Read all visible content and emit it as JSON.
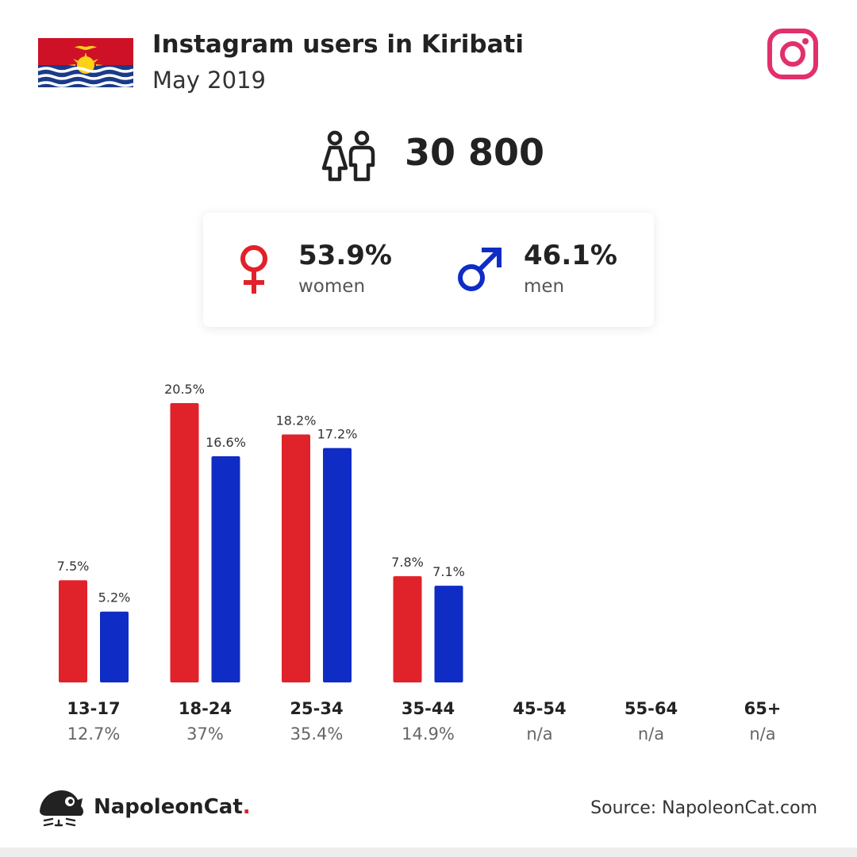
{
  "header": {
    "title": "Instagram users in Kiribati",
    "subtitle": "May 2019"
  },
  "summary": {
    "total": "30 800",
    "women_pct": "53.9%",
    "women_label": "women",
    "men_pct": "46.1%",
    "men_label": "men"
  },
  "footer": {
    "brand": "NapoleonCat",
    "brand_dot": ".",
    "source": "Source: NapoleonCat.com"
  },
  "colors": {
    "women": "#e0222a",
    "men": "#0f2cc4",
    "instagram": "#e1306c"
  },
  "icons": [
    "kiribati-flag-icon",
    "instagram-icon",
    "people-icon",
    "female-symbol-icon",
    "male-symbol-icon",
    "napoleoncat-logo-icon"
  ],
  "chart_data": {
    "type": "bar",
    "categories": [
      "13-17",
      "18-24",
      "25-34",
      "35-44",
      "45-54",
      "55-64",
      "65+"
    ],
    "category_totals": [
      "12.7%",
      "37%",
      "35.4%",
      "14.9%",
      "n/a",
      "n/a",
      "n/a"
    ],
    "series": [
      {
        "name": "women",
        "values": [
          7.5,
          20.5,
          18.2,
          7.8,
          null,
          null,
          null
        ],
        "labels": [
          "7.5%",
          "20.5%",
          "18.2%",
          "7.8%",
          "",
          "",
          ""
        ]
      },
      {
        "name": "men",
        "values": [
          5.2,
          16.6,
          17.2,
          7.1,
          null,
          null,
          null
        ],
        "labels": [
          "5.2%",
          "16.6%",
          "17.2%",
          "7.1%",
          "",
          "",
          ""
        ]
      }
    ],
    "ylim": [
      0,
      20.5
    ],
    "grid": false,
    "legend": "none"
  }
}
